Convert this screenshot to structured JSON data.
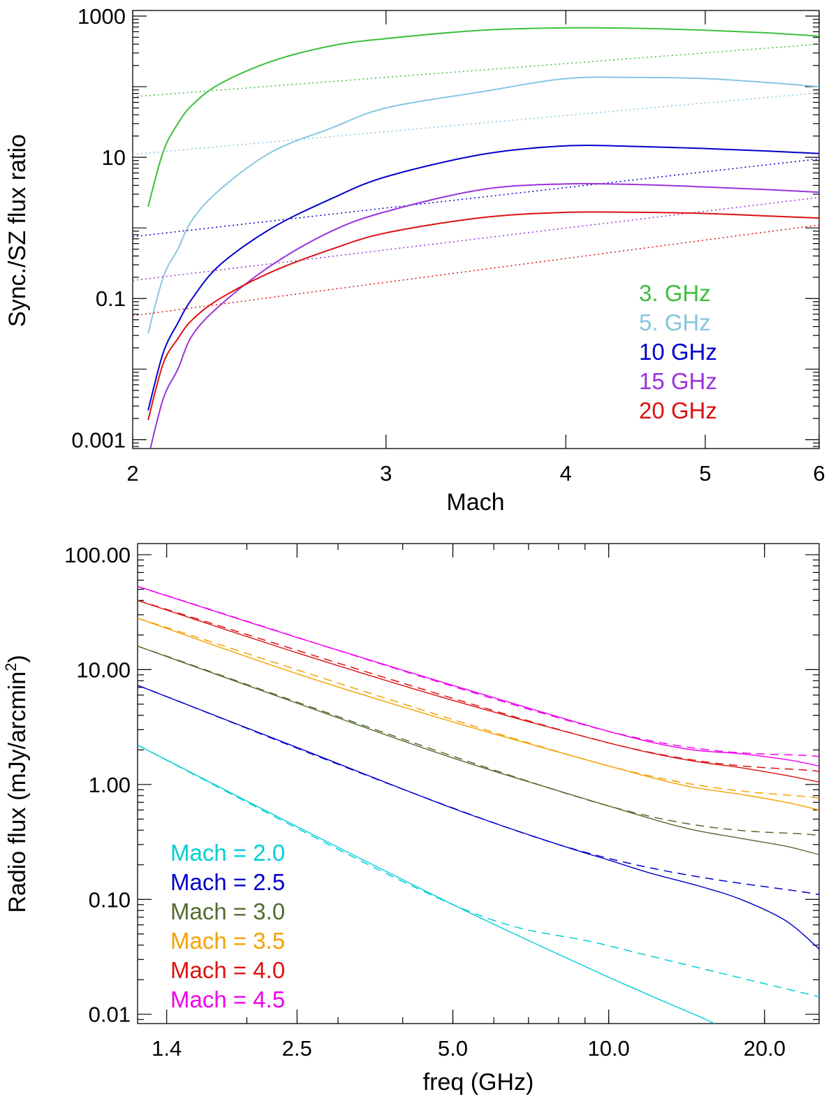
{
  "chart_data": [
    {
      "type": "line",
      "xscale": "log",
      "yscale": "log",
      "xlabel": "Mach",
      "ylabel": "Sync./SZ flux ratio",
      "xlim": [
        2,
        6
      ],
      "ylim": [
        0.00075,
        1200
      ],
      "xticks": [
        {
          "value": 2,
          "label": "2"
        },
        {
          "value": 3,
          "label": "3"
        },
        {
          "value": 4,
          "label": "4"
        },
        {
          "value": 5,
          "label": "5"
        },
        {
          "value": 6,
          "label": "6"
        }
      ],
      "yticks": [
        {
          "value": 0.001,
          "label": "0.001"
        },
        {
          "value": 0.1,
          "label": "0.1"
        },
        {
          "value": 10,
          "label": "10"
        },
        {
          "value": 1000,
          "label": "1000"
        }
      ],
      "legend_position": "lower-right",
      "series": [
        {
          "name": "3. GHz",
          "color": "#3cbf3c",
          "solid": {
            "x": [
              2.05,
              2.1,
              2.15,
              2.2,
              2.3,
              2.5,
              2.75,
              3.0,
              3.5,
              4.0,
              4.5,
              5.0,
              5.5,
              6.0
            ],
            "y": [
              2.0,
              12,
              30,
              55,
              110,
              230,
              380,
              480,
              630,
              680,
              670,
              630,
              580,
              520
            ]
          },
          "dotted": {
            "x": [
              2.0,
              6.0
            ],
            "y": [
              72,
              400
            ]
          }
        },
        {
          "name": "5. GHz",
          "color": "#87c6e0",
          "solid": {
            "x": [
              2.05,
              2.1,
              2.15,
              2.2,
              2.3,
              2.5,
              2.75,
              3.0,
              3.5,
              4.0,
              4.5,
              5.0,
              5.5,
              6.0
            ],
            "y": [
              0.032,
              0.2,
              0.5,
              1.3,
              3.5,
              12,
              26,
              50,
              85,
              130,
              135,
              130,
              115,
              100
            ]
          },
          "dotted": {
            "x": [
              2.0,
              6.0
            ],
            "y": [
              11,
              82
            ]
          }
        },
        {
          "name": "10 GHz",
          "color": "#0000cc",
          "solid": {
            "x": [
              2.05,
              2.1,
              2.15,
              2.2,
              2.3,
              2.5,
              2.75,
              3.0,
              3.5,
              4.0,
              4.5,
              5.0,
              5.5,
              6.0
            ],
            "y": [
              0.0026,
              0.017,
              0.045,
              0.1,
              0.3,
              1.0,
              2.6,
              5.3,
              11,
              14.5,
              14.2,
              13.3,
              12.3,
              11.3
            ]
          },
          "dotted": {
            "x": [
              2.0,
              6.0
            ],
            "y": [
              0.75,
              9.5
            ]
          }
        },
        {
          "name": "15 GHz",
          "color": "#9933dd",
          "solid": {
            "x": [
              2.05,
              2.1,
              2.15,
              2.2,
              2.3,
              2.5,
              2.75,
              3.0,
              3.5,
              4.0,
              4.5,
              5.0,
              5.5,
              6.0
            ],
            "y": [
              0.00055,
              0.0038,
              0.01,
              0.03,
              0.08,
              0.3,
              0.9,
              1.7,
              3.5,
              4.2,
              4.1,
              3.8,
              3.5,
              3.2
            ]
          },
          "dotted": {
            "x": [
              2.0,
              6.0
            ],
            "y": [
              0.18,
              2.7
            ]
          }
        },
        {
          "name": "20 GHz",
          "color": "#dd1111",
          "solid": {
            "x": [
              2.05,
              2.1,
              2.15,
              2.2,
              2.3,
              2.5,
              2.75,
              3.0,
              3.5,
              4.0,
              4.5,
              5.0,
              5.5,
              6.0
            ],
            "y": [
              0.0019,
              0.012,
              0.027,
              0.05,
              0.1,
              0.24,
              0.5,
              0.85,
              1.4,
              1.66,
              1.66,
              1.6,
              1.48,
              1.38
            ]
          },
          "dotted": {
            "x": [
              2.0,
              6.0
            ],
            "y": [
              0.057,
              1.1
            ]
          }
        }
      ]
    },
    {
      "type": "line",
      "xscale": "log",
      "yscale": "log",
      "xlabel": "freq (GHz)",
      "ylabel": "Radio flux (mJy/arcmin",
      "ylabel_superscript": "2",
      "ylabel_suffix": ")",
      "xlim": [
        1.23,
        25.5
      ],
      "ylim": [
        0.0083,
        125
      ],
      "xticks": [
        {
          "value": 1.4,
          "label": "1.4"
        },
        {
          "value": 2.5,
          "label": "2.5"
        },
        {
          "value": 5.0,
          "label": "5.0"
        },
        {
          "value": 10.0,
          "label": "10.0"
        },
        {
          "value": 20.0,
          "label": "20.0"
        }
      ],
      "yticks": [
        {
          "value": 0.01,
          "label": "0.01"
        },
        {
          "value": 0.1,
          "label": "0.10"
        },
        {
          "value": 1,
          "label": "1.00"
        },
        {
          "value": 10,
          "label": "10.00"
        },
        {
          "value": 100,
          "label": "100.00"
        }
      ],
      "legend_position": "lower-left",
      "series": [
        {
          "name": "Mach = 2.0",
          "color": "#00cfd6",
          "solid": {
            "x": [
              1.23,
              2.5,
              5.0,
              7.5,
              10.0,
              12.5,
              15.0,
              16.0
            ],
            "y": [
              2.2,
              0.43,
              0.09,
              0.038,
              0.021,
              0.0135,
              0.0095,
              0.0083
            ]
          },
          "dashed": {
            "x": [
              1.23,
              5.0,
              10.0,
              25.5
            ],
            "y": [
              2.2,
              0.09,
              0.0395,
              0.0142
            ]
          }
        },
        {
          "name": "Mach = 2.5",
          "color": "#0000cc",
          "solid": {
            "x": [
              1.23,
              2.5,
              5.0,
              8.0,
              10.0,
              12.0,
              15.0,
              18.0,
              22.0,
              25.5
            ],
            "y": [
              7.3,
              2.1,
              0.62,
              0.3,
              0.22,
              0.17,
              0.13,
              0.1,
              0.065,
              0.037
            ]
          },
          "dashed": {
            "x": [
              1.23,
              8.0,
              25.5
            ],
            "y": [
              7.3,
              0.3,
              0.11
            ]
          }
        },
        {
          "name": "Mach = 3.0",
          "color": "#556b2f",
          "solid": {
            "x": [
              1.23,
              2.5,
              5.0,
              10.0,
              14.0,
              18.0,
              22.0,
              25.5
            ],
            "y": [
              16,
              5.1,
              1.7,
              0.65,
              0.42,
              0.34,
              0.29,
              0.245
            ]
          },
          "dashed": {
            "x": [
              1.23,
              10.0,
              25.5
            ],
            "y": [
              16,
              0.65,
              0.36
            ]
          }
        },
        {
          "name": "Mach = 3.5",
          "color": "#f5a000",
          "solid": {
            "x": [
              1.23,
              2.5,
              5.0,
              10.0,
              14.0,
              18.0,
              22.0,
              25.5
            ],
            "y": [
              28,
              9.2,
              3.5,
              1.45,
              0.98,
              0.82,
              0.7,
              0.6
            ]
          },
          "dashed": {
            "x": [
              1.23,
              10.0,
              25.5
            ],
            "y": [
              28,
              1.45,
              0.76
            ]
          }
        },
        {
          "name": "Mach = 4.0",
          "color": "#dd1111",
          "solid": {
            "x": [
              1.23,
              2.5,
              5.0,
              10.0,
              14.0,
              18.0,
              22.0,
              25.5
            ],
            "y": [
              40,
              14,
              5.4,
              2.3,
              1.65,
              1.4,
              1.2,
              1.05
            ]
          },
          "dashed": {
            "x": [
              1.23,
              10.0,
              25.5
            ],
            "y": [
              40,
              2.3,
              1.3
            ]
          }
        },
        {
          "name": "Mach = 4.5",
          "color": "#ee00ee",
          "solid": {
            "x": [
              1.23,
              2.5,
              5.0,
              10.0,
              14.0,
              18.0,
              22.0,
              25.5
            ],
            "y": [
              53,
              19,
              7.3,
              2.9,
              2.05,
              1.85,
              1.65,
              1.45
            ]
          },
          "dashed": {
            "x": [
              1.23,
              10.0,
              25.5
            ],
            "y": [
              53,
              2.9,
              1.75
            ]
          }
        }
      ]
    }
  ]
}
